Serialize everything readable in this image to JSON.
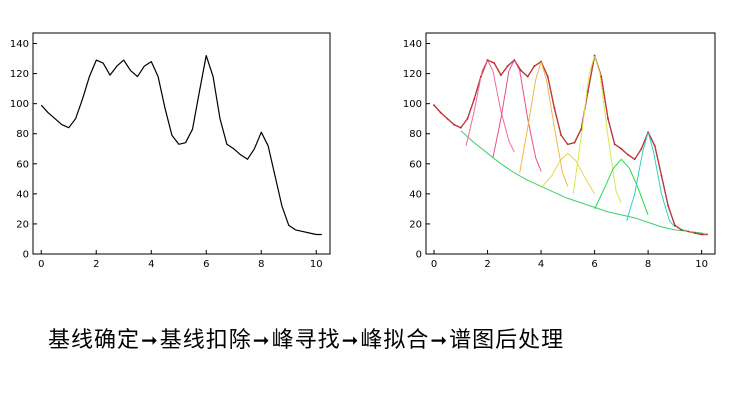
{
  "chart_data": [
    {
      "type": "line",
      "xlim": [
        -0.3,
        10.5
      ],
      "ylim": [
        0,
        147
      ],
      "xticks": [
        0,
        2,
        4,
        6,
        8,
        10
      ],
      "yticks": [
        0,
        20,
        40,
        60,
        80,
        100,
        120,
        140
      ],
      "grid": false,
      "series": [
        {
          "x": [
            0,
            0.25,
            0.5,
            0.75,
            1.0,
            1.25,
            1.5,
            1.75,
            2.0,
            2.25,
            2.5,
            2.75,
            3.0,
            3.25,
            3.5,
            3.75,
            4.0,
            4.25,
            4.5,
            4.75,
            5.0,
            5.25,
            5.5,
            5.75,
            6.0,
            6.25,
            6.5,
            6.75,
            7.0,
            7.25,
            7.5,
            7.75,
            8.0,
            8.25,
            8.5,
            8.75,
            9.0,
            9.25,
            9.5,
            9.75,
            10.0,
            10.2
          ],
          "y": [
            99,
            94,
            90,
            86,
            84,
            90,
            103,
            118,
            129,
            127,
            119,
            125,
            129,
            122,
            118,
            125,
            128,
            118,
            97,
            79,
            73,
            74,
            83,
            108,
            132,
            118,
            90,
            73,
            70,
            66,
            63,
            70,
            81,
            72,
            52,
            32,
            19,
            16,
            15,
            14,
            13,
            13
          ],
          "color": "#000000"
        }
      ]
    },
    {
      "type": "line",
      "xlim": [
        -0.3,
        10.5
      ],
      "ylim": [
        0,
        147
      ],
      "xticks": [
        0,
        2,
        4,
        6,
        8,
        10
      ],
      "yticks": [
        0,
        20,
        40,
        60,
        80,
        100,
        120,
        140
      ],
      "grid": false,
      "series": [
        {
          "x": [
            0,
            0.25,
            0.5,
            0.75,
            1.0,
            1.25,
            1.5,
            1.75,
            2.0,
            2.25,
            2.5,
            2.75,
            3.0,
            3.25,
            3.5,
            3.75,
            4.0,
            4.25,
            4.5,
            4.75,
            5.0,
            5.25,
            5.5,
            5.75,
            6.0,
            6.25,
            6.5,
            6.75,
            7.0,
            7.25,
            7.5,
            7.75,
            8.0,
            8.25,
            8.5,
            8.75,
            9.0,
            9.25,
            9.5,
            9.75,
            10.0,
            10.2
          ],
          "y": [
            99,
            94,
            90,
            86,
            84,
            90,
            103,
            118,
            129,
            127,
            119,
            125,
            129,
            122,
            118,
            125,
            128,
            118,
            97,
            79,
            73,
            74,
            83,
            108,
            132,
            118,
            90,
            73,
            70,
            66,
            63,
            70,
            81,
            72,
            52,
            32,
            19,
            16,
            15,
            14,
            13,
            13
          ],
          "color": "#000000"
        },
        {
          "x": [
            0,
            0.25,
            0.5,
            0.75,
            1.0,
            1.25,
            1.5,
            1.75,
            2.0,
            2.25,
            2.5,
            2.75,
            3.0,
            3.25,
            3.5,
            3.75,
            4.0,
            4.25,
            4.5,
            4.75,
            5.0,
            5.25,
            5.5,
            5.75,
            6.0,
            6.25,
            6.5,
            6.75,
            7.0,
            7.25,
            7.5,
            7.75,
            8.0,
            8.25,
            8.5,
            8.75,
            9.0,
            9.25,
            9.5,
            9.75,
            10.0,
            10.2
          ],
          "y": [
            99,
            94,
            90,
            86,
            84,
            90,
            103,
            118,
            129,
            127,
            119,
            125,
            129,
            122,
            118,
            125,
            128,
            118,
            97,
            79,
            73,
            74,
            83,
            108,
            132,
            118,
            90,
            73,
            70,
            66,
            63,
            70,
            81,
            72,
            52,
            32,
            19,
            16,
            15,
            14,
            13,
            13
          ],
          "color": "#e8343a"
        },
        {
          "x": [
            1.0,
            1.5,
            2.0,
            2.5,
            3.0,
            3.5,
            4.0,
            4.5,
            5.0,
            5.5,
            6.0,
            6.5,
            7.0,
            7.5,
            8.0,
            8.5,
            9.0,
            9.5,
            10.0,
            10.2
          ],
          "y": [
            82,
            74,
            67,
            60,
            54,
            49,
            45,
            41,
            37,
            34,
            31,
            28,
            26,
            24,
            21,
            18,
            16,
            15,
            14,
            13
          ],
          "color": "#3ecf6e"
        },
        {
          "x": [
            1.2,
            1.5,
            1.8,
            2.0,
            2.2,
            2.5,
            2.8,
            3.0
          ],
          "y": [
            72,
            95,
            122,
            129,
            122,
            95,
            75,
            68
          ],
          "color": "#f06aa0"
        },
        {
          "x": [
            2.2,
            2.5,
            2.8,
            3.0,
            3.2,
            3.5,
            3.8,
            4.0
          ],
          "y": [
            64,
            90,
            122,
            129,
            122,
            90,
            64,
            55
          ],
          "color": "#e8508a"
        },
        {
          "x": [
            3.2,
            3.5,
            3.8,
            4.0,
            4.2,
            4.5,
            4.8,
            5.0
          ],
          "y": [
            54,
            84,
            116,
            128,
            116,
            84,
            54,
            45
          ],
          "color": "#f2b64a"
        },
        {
          "x": [
            4.0,
            4.4,
            4.7,
            5.0,
            5.3,
            5.6,
            6.0
          ],
          "y": [
            44,
            52,
            62,
            67,
            62,
            52,
            40
          ],
          "color": "#e2d84a"
        },
        {
          "x": [
            5.2,
            5.5,
            5.8,
            6.0,
            6.2,
            6.5,
            6.8,
            7.0
          ],
          "y": [
            40,
            78,
            120,
            132,
            120,
            78,
            42,
            34
          ],
          "color": "#d9e84a"
        },
        {
          "x": [
            6.0,
            6.4,
            6.7,
            7.0,
            7.3,
            7.6,
            8.0
          ],
          "y": [
            30,
            45,
            57,
            63,
            57,
            45,
            26
          ],
          "color": "#22dd4a"
        },
        {
          "x": [
            7.2,
            7.5,
            7.8,
            8.0,
            8.2,
            8.5,
            8.8,
            9.0
          ],
          "y": [
            22,
            40,
            68,
            81,
            68,
            40,
            22,
            18
          ],
          "color": "#2bd4c0"
        }
      ]
    }
  ],
  "caption": {
    "steps": [
      "基线确定",
      "基线扣除",
      "峰寻找",
      "峰拟合",
      "谱图后处理"
    ],
    "arrow": "➞"
  }
}
